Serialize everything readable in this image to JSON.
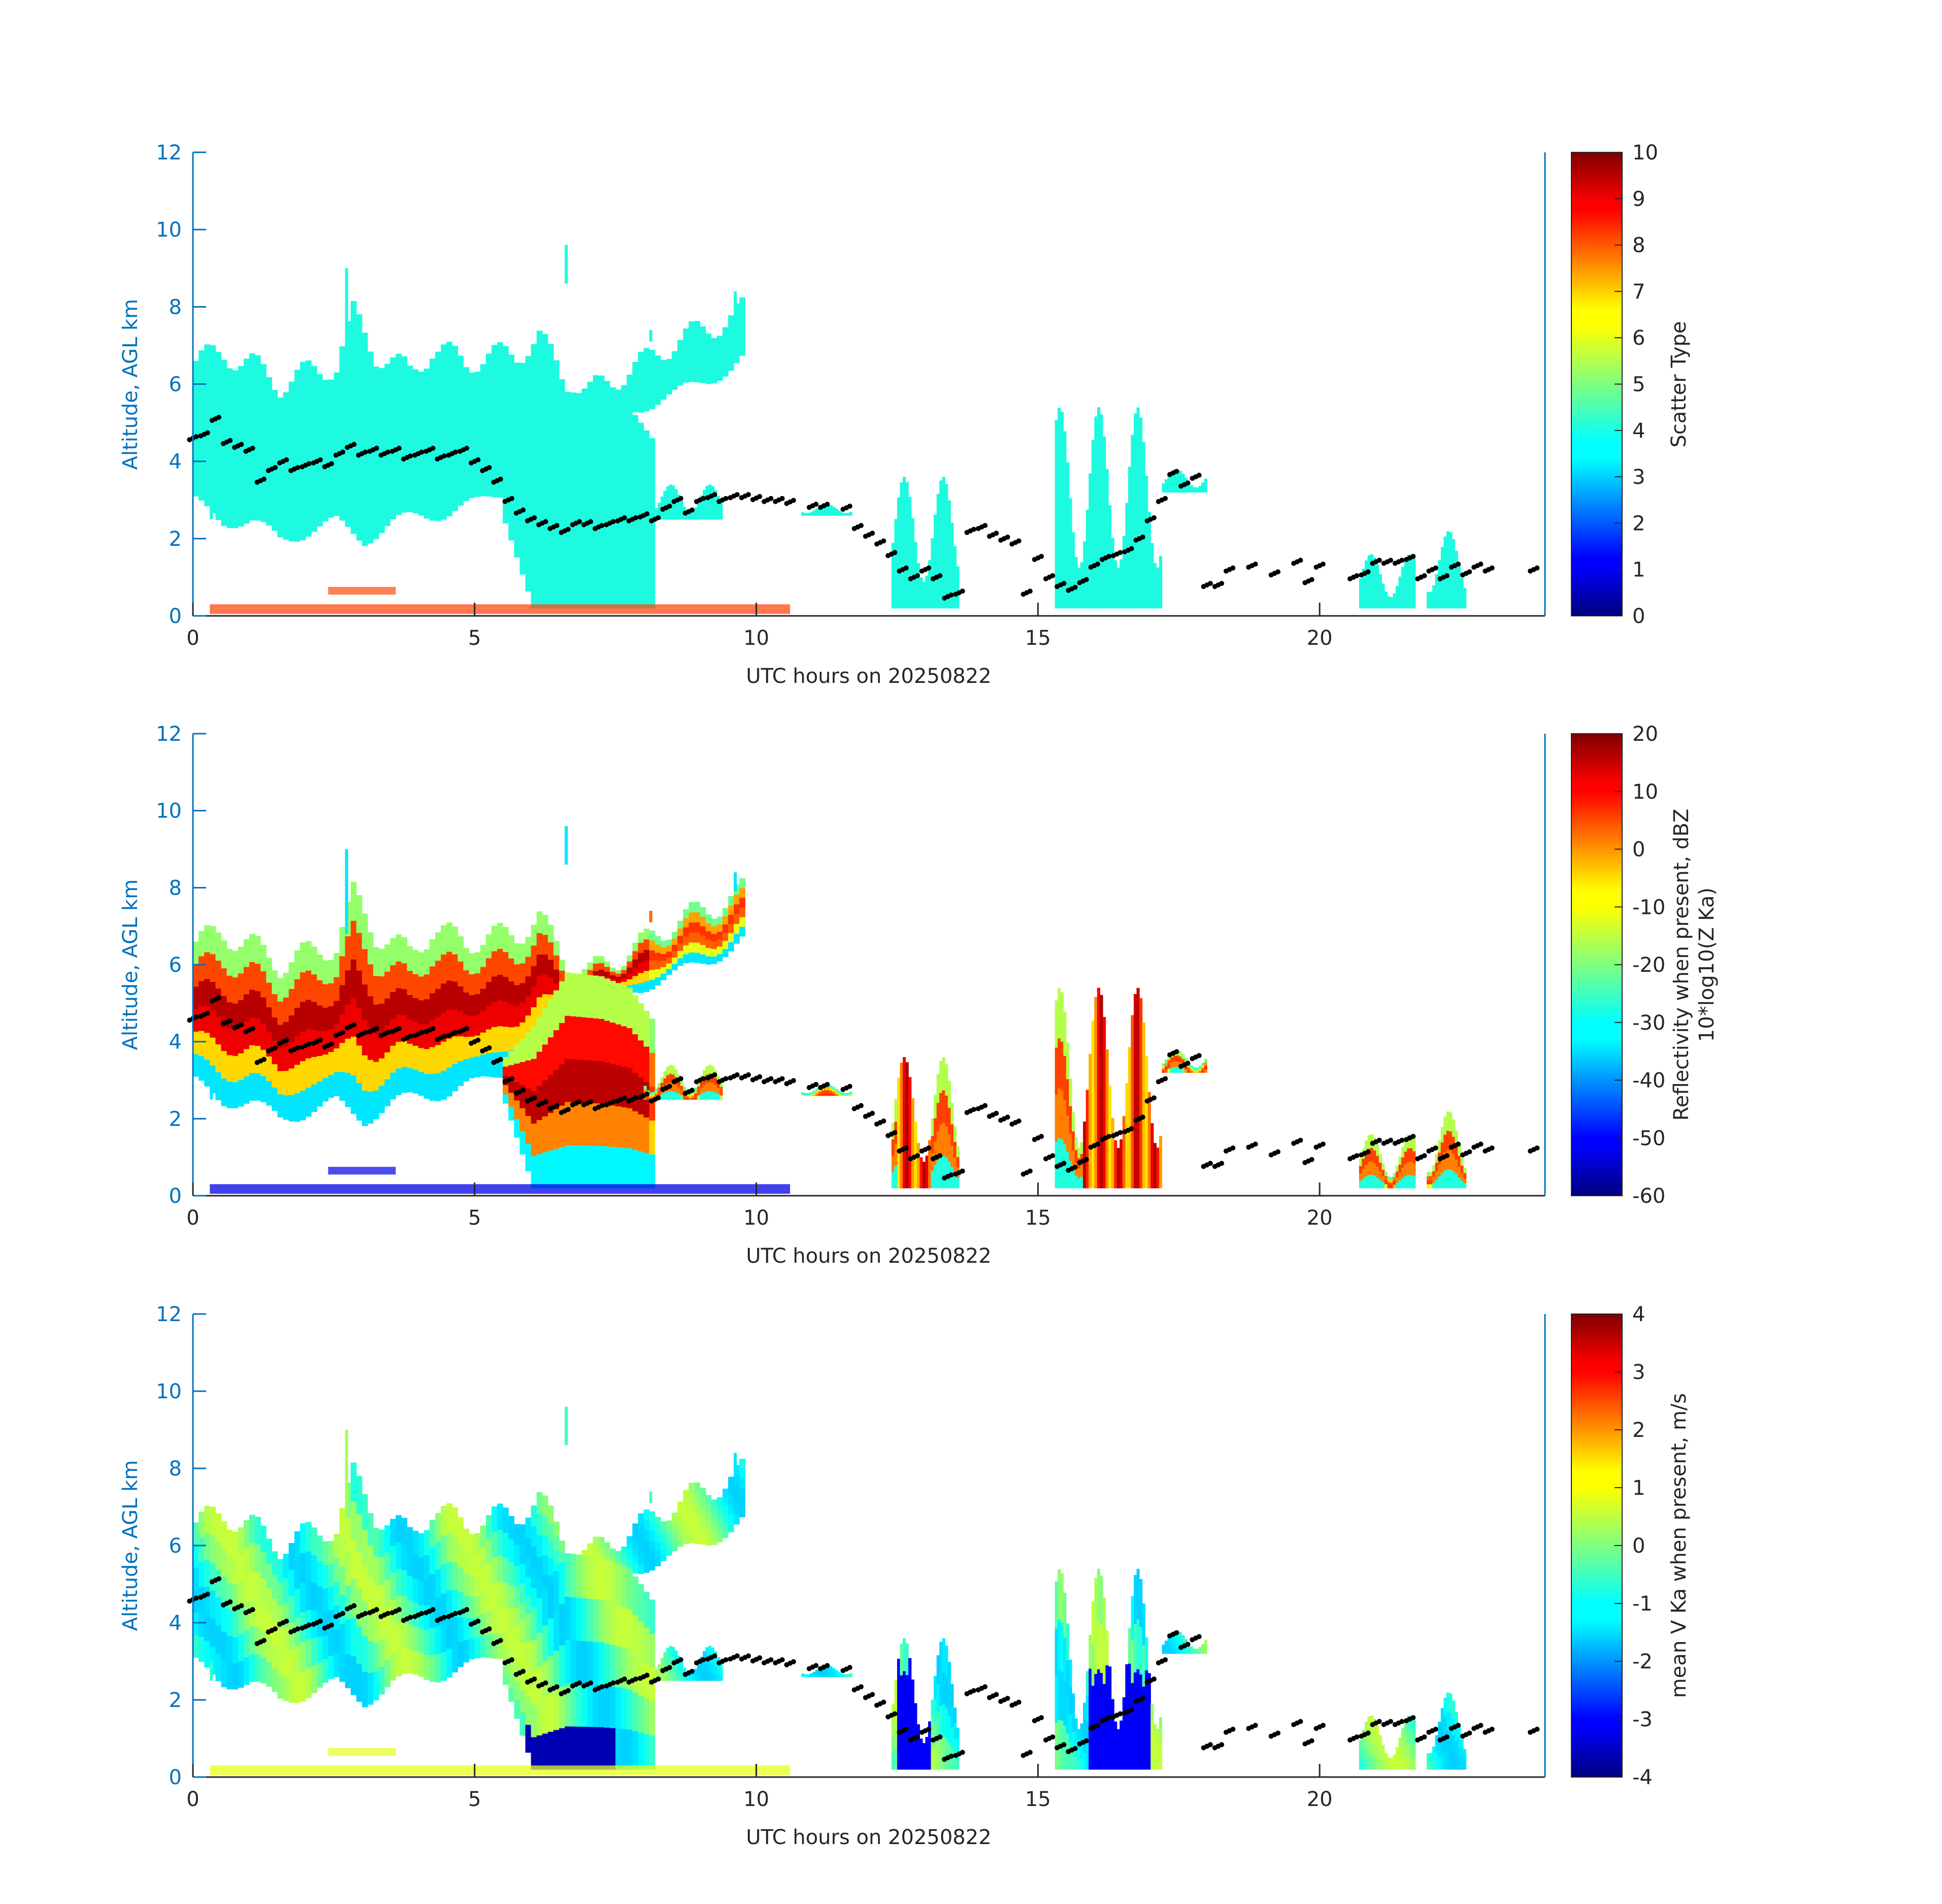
{
  "colors": {
    "axis_blue": "#0072BD",
    "dark_text": "#262626",
    "cyan_cloud": "#1efae0",
    "orange_clutter": "#ff4a10",
    "dot_black": "#000000"
  },
  "colormap": "jet",
  "chart_data": [
    {
      "type": "heatmap",
      "panel": "scatter-type",
      "xlabel": "UTC hours on 20250822",
      "ylabel": "Altitude, AGL km",
      "xlim": [
        0,
        24
      ],
      "ylim": [
        0,
        12
      ],
      "xticks": [
        0,
        5,
        10,
        15,
        20
      ],
      "yticks": [
        0,
        2,
        4,
        6,
        8,
        10,
        12
      ],
      "colorbar": {
        "label": "Scatter Type",
        "label_line2": "",
        "range": [
          0,
          10
        ],
        "ticks": [
          "10",
          "9",
          "8",
          "7",
          "6",
          "5",
          "4",
          "3",
          "2",
          "1",
          "0"
        ]
      }
    },
    {
      "type": "heatmap",
      "panel": "reflectivity",
      "xlabel": "UTC hours on 20250822",
      "ylabel": "Altitude, AGL km",
      "xlim": [
        0,
        24
      ],
      "ylim": [
        0,
        12
      ],
      "xticks": [
        0,
        5,
        10,
        15,
        20
      ],
      "yticks": [
        0,
        2,
        4,
        6,
        8,
        10,
        12
      ],
      "colorbar": {
        "label": "Reflectivity when present, dBZ",
        "label_line2": "10*log10(Z Ka)",
        "range": [
          -60,
          20
        ],
        "ticks": [
          "20",
          "10",
          "0",
          "-10",
          "-20",
          "-30",
          "-40",
          "-50",
          "-60"
        ]
      }
    },
    {
      "type": "heatmap",
      "panel": "doppler-velocity",
      "xlabel": "UTC hours on 20250822",
      "ylabel": "Altitude, AGL km",
      "xlim": [
        0,
        24
      ],
      "ylim": [
        0,
        12
      ],
      "xticks": [
        0,
        5,
        10,
        15,
        20
      ],
      "yticks": [
        0,
        2,
        4,
        6,
        8,
        10,
        12
      ],
      "colorbar": {
        "label": "mean V Ka when present, m/s",
        "label_line2": "",
        "range": [
          -4,
          4
        ],
        "ticks": [
          "4",
          "3",
          "2",
          "1",
          "0",
          "-1",
          "-2",
          "-3",
          "-4"
        ]
      }
    }
  ],
  "cloud_layer": {
    "upper_top_km": [
      [
        0,
        6.6
      ],
      [
        0.5,
        6.8
      ],
      [
        1,
        6.5
      ],
      [
        1.5,
        6.0
      ],
      [
        2,
        6.3
      ],
      [
        2.5,
        6.5
      ],
      [
        2.8,
        7.8
      ],
      [
        3.2,
        6.8
      ],
      [
        3.8,
        6.3
      ],
      [
        4.2,
        6.9
      ],
      [
        4.8,
        6.6
      ],
      [
        5.2,
        6.7
      ],
      [
        5.7,
        6.8
      ],
      [
        6.1,
        7.2
      ],
      [
        6.6,
        6.0
      ],
      [
        7.0,
        5.8
      ],
      [
        7.5,
        6.2
      ],
      [
        8.0,
        6.6
      ],
      [
        8.5,
        7.1
      ],
      [
        9.0,
        7.4
      ],
      [
        9.5,
        7.7
      ],
      [
        9.7,
        7.9
      ]
    ],
    "upper_base_km": [
      [
        0,
        2.9
      ],
      [
        0.5,
        2.5
      ],
      [
        1,
        2.4
      ],
      [
        1.5,
        2.0
      ],
      [
        2,
        2.2
      ],
      [
        2.5,
        2.4
      ],
      [
        3,
        2.0
      ],
      [
        3.5,
        2.4
      ],
      [
        4,
        2.6
      ],
      [
        4.5,
        2.7
      ],
      [
        5,
        2.9
      ],
      [
        5.5,
        3.3
      ],
      [
        6,
        3.7
      ],
      [
        6.5,
        4.5
      ],
      [
        7,
        5.0
      ],
      [
        7.5,
        5.2
      ],
      [
        8,
        5.5
      ],
      [
        8.5,
        5.7
      ],
      [
        9,
        6.1
      ],
      [
        9.5,
        6.4
      ],
      [
        9.7,
        6.6
      ]
    ],
    "lower_top_km": [
      [
        5.5,
        3.6
      ],
      [
        6,
        4.4
      ],
      [
        6.6,
        5.8
      ],
      [
        7.2,
        5.7
      ],
      [
        7.7,
        5.4
      ],
      [
        8.1,
        4.6
      ]
    ],
    "lower_base_km": [
      [
        5.5,
        2.4
      ],
      [
        6,
        0.2
      ],
      [
        8.1,
        0.2
      ]
    ],
    "middle_segments_km": [
      [
        8.0,
        9.4,
        2.5,
        3.4
      ],
      [
        10.8,
        11.7,
        2.6,
        2.9
      ],
      [
        12.4,
        13.6,
        0.2,
        3.6
      ],
      [
        15.3,
        17.2,
        0.2,
        5.4
      ],
      [
        17.2,
        18.0,
        3.2,
        3.8
      ],
      [
        20.7,
        21.7,
        0.2,
        1.6
      ],
      [
        21.9,
        22.6,
        0.2,
        2.2
      ]
    ],
    "small_streak_hours": [
      [
        0.3,
        2.5,
        3.0
      ],
      [
        2.7,
        6.8,
        9.0
      ],
      [
        6.6,
        8.6,
        9.6
      ],
      [
        8.1,
        7.1,
        7.4
      ],
      [
        9.6,
        7.9,
        8.4
      ]
    ]
  },
  "melting_layer_dots": {
    "hour_km": [
      [
        0,
        4.6
      ],
      [
        0.2,
        4.7
      ],
      [
        0.4,
        5.1
      ],
      [
        0.6,
        4.5
      ],
      [
        0.8,
        4.4
      ],
      [
        1.0,
        4.3
      ],
      [
        1.2,
        3.5
      ],
      [
        1.4,
        3.8
      ],
      [
        1.6,
        4.0
      ],
      [
        1.8,
        3.8
      ],
      [
        2.0,
        3.9
      ],
      [
        2.2,
        4.0
      ],
      [
        2.4,
        3.9
      ],
      [
        2.6,
        4.2
      ],
      [
        2.8,
        4.4
      ],
      [
        3.0,
        4.2
      ],
      [
        3.2,
        4.3
      ],
      [
        3.4,
        4.2
      ],
      [
        3.6,
        4.3
      ],
      [
        3.8,
        4.1
      ],
      [
        4.0,
        4.2
      ],
      [
        4.2,
        4.3
      ],
      [
        4.4,
        4.1
      ],
      [
        4.6,
        4.2
      ],
      [
        4.8,
        4.3
      ],
      [
        5.0,
        4.0
      ],
      [
        5.2,
        3.8
      ],
      [
        5.4,
        3.5
      ],
      [
        5.6,
        3.0
      ],
      [
        5.8,
        2.7
      ],
      [
        6.0,
        2.5
      ],
      [
        6.2,
        2.4
      ],
      [
        6.4,
        2.3
      ],
      [
        6.6,
        2.2
      ],
      [
        6.8,
        2.4
      ],
      [
        7.0,
        2.4
      ],
      [
        7.2,
        2.3
      ],
      [
        7.4,
        2.4
      ],
      [
        7.6,
        2.5
      ],
      [
        7.8,
        2.5
      ],
      [
        8.0,
        2.6
      ],
      [
        8.2,
        2.5
      ],
      [
        8.4,
        2.8
      ],
      [
        8.6,
        3.0
      ],
      [
        8.8,
        2.7
      ],
      [
        9.0,
        3.0
      ],
      [
        9.2,
        3.1
      ],
      [
        9.4,
        3.0
      ],
      [
        9.6,
        3.1
      ],
      [
        9.8,
        3.1
      ],
      [
        10.0,
        3.05
      ],
      [
        10.2,
        3.0
      ],
      [
        10.4,
        3.0
      ],
      [
        10.6,
        2.95
      ],
      [
        11.0,
        2.85
      ],
      [
        11.2,
        2.85
      ],
      [
        11.6,
        2.8
      ],
      [
        11.8,
        2.3
      ],
      [
        12.0,
        2.1
      ],
      [
        12.2,
        1.9
      ],
      [
        12.4,
        1.6
      ],
      [
        12.6,
        1.2
      ],
      [
        12.8,
        1.0
      ],
      [
        13.0,
        1.2
      ],
      [
        13.2,
        1.0
      ],
      [
        13.4,
        0.5
      ],
      [
        13.6,
        0.6
      ],
      [
        13.8,
        2.2
      ],
      [
        14.0,
        2.3
      ],
      [
        14.2,
        2.1
      ],
      [
        14.4,
        2.0
      ],
      [
        14.6,
        1.9
      ],
      [
        14.8,
        0.6
      ],
      [
        15.0,
        1.5
      ],
      [
        15.2,
        1.0
      ],
      [
        15.4,
        0.8
      ],
      [
        15.6,
        0.7
      ],
      [
        15.8,
        0.9
      ],
      [
        16.0,
        1.3
      ],
      [
        16.2,
        1.5
      ],
      [
        16.4,
        1.6
      ],
      [
        16.6,
        1.7
      ],
      [
        16.8,
        2.0
      ],
      [
        17.0,
        2.5
      ],
      [
        17.2,
        3.0
      ],
      [
        17.4,
        3.7
      ],
      [
        17.6,
        3.4
      ],
      [
        17.8,
        3.6
      ],
      [
        18.0,
        0.8
      ],
      [
        18.2,
        0.8
      ],
      [
        18.4,
        1.2
      ],
      [
        18.8,
        1.3
      ],
      [
        19.2,
        1.1
      ],
      [
        19.6,
        1.4
      ],
      [
        19.8,
        0.9
      ],
      [
        20.0,
        1.3
      ],
      [
        20.6,
        1.0
      ],
      [
        20.8,
        1.1
      ],
      [
        21.0,
        1.4
      ],
      [
        21.2,
        1.4
      ],
      [
        21.4,
        1.4
      ],
      [
        21.6,
        1.5
      ],
      [
        21.8,
        1.0
      ],
      [
        22.0,
        1.2
      ],
      [
        22.2,
        1.0
      ],
      [
        22.4,
        1.3
      ],
      [
        22.6,
        1.1
      ],
      [
        22.8,
        1.3
      ],
      [
        23.0,
        1.2
      ],
      [
        23.8,
        1.2
      ]
    ]
  }
}
